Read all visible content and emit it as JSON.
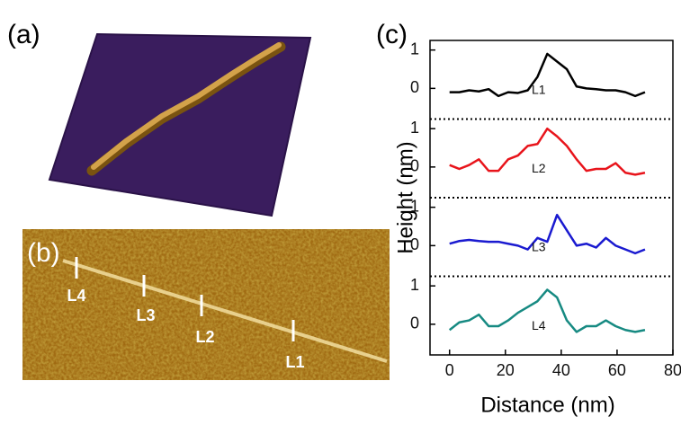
{
  "panels": {
    "a": "(a)",
    "b": "(b)",
    "c": "(c)"
  },
  "image_b": {
    "labels": [
      "L4",
      "L3",
      "L2",
      "L1"
    ]
  },
  "chart_data": {
    "type": "line",
    "x_label": "Distance (nm)",
    "y_label": "Height (nm)",
    "x": [
      0,
      3.5,
      7,
      10.5,
      14,
      17.5,
      21,
      24.5,
      28,
      31.5,
      35,
      38.5,
      42,
      45.5,
      49,
      52.5,
      56,
      59.5,
      63,
      66.5,
      70
    ],
    "xlim": [
      -7,
      80
    ],
    "xticks": [
      0,
      20,
      40,
      60,
      80
    ],
    "ylim": [
      -0.8,
      1.25
    ],
    "yticks": [
      0,
      1
    ],
    "series": [
      {
        "name": "L1",
        "color": "#000000",
        "values": [
          -0.1,
          -0.1,
          -0.05,
          -0.08,
          -0.02,
          -0.2,
          -0.1,
          -0.12,
          -0.05,
          0.3,
          0.9,
          0.7,
          0.5,
          0.05,
          0,
          -0.02,
          -0.05,
          -0.05,
          -0.1,
          -0.2,
          -0.1
        ]
      },
      {
        "name": "L2",
        "color": "#e8141b",
        "values": [
          0.05,
          -0.05,
          0.05,
          0.2,
          -0.1,
          -0.1,
          0.2,
          0.3,
          0.55,
          0.6,
          1.0,
          0.8,
          0.55,
          0.2,
          -0.1,
          -0.05,
          -0.05,
          0.1,
          -0.15,
          -0.2,
          -0.15
        ]
      },
      {
        "name": "L3",
        "color": "#1a1ad0",
        "values": [
          0.05,
          0.12,
          0.15,
          0.12,
          0.1,
          0.1,
          0.05,
          0,
          -0.1,
          0.2,
          0.1,
          0.8,
          0.4,
          0,
          0.05,
          -0.05,
          0.2,
          0,
          -0.1,
          -0.2,
          -0.1
        ]
      },
      {
        "name": "L4",
        "color": "#178a82",
        "values": [
          -0.15,
          0.05,
          0.1,
          0.25,
          -0.05,
          -0.05,
          0.1,
          0.3,
          0.45,
          0.6,
          0.9,
          0.7,
          0.1,
          -0.2,
          -0.05,
          -0.05,
          0.1,
          -0.05,
          -0.15,
          -0.2,
          -0.15
        ]
      }
    ]
  }
}
